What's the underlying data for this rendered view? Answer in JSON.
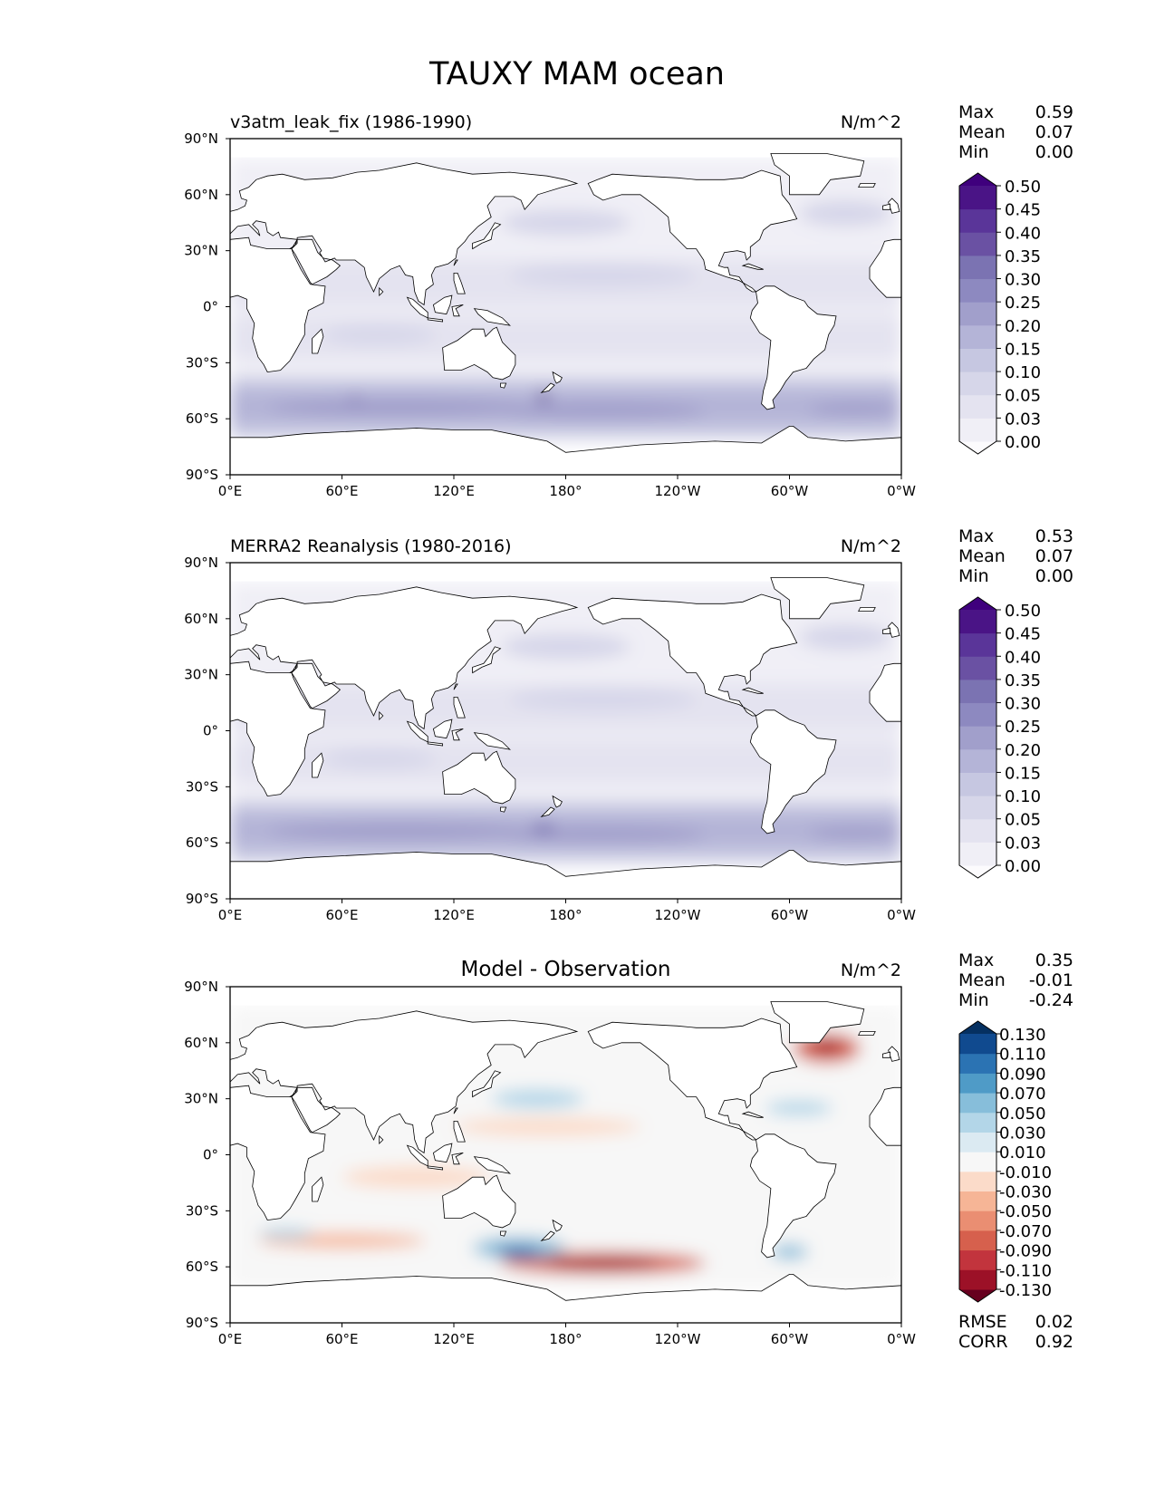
{
  "chart_data": {
    "type": "heatmap",
    "title": "TAUXY MAM ocean",
    "xlabel": "",
    "ylabel": "",
    "xlim": [
      0,
      360
    ],
    "ylim": [
      -90,
      90
    ],
    "x_ticks": [
      "0°E",
      "60°E",
      "120°E",
      "180°",
      "120°W",
      "60°W",
      "0°W"
    ],
    "y_ticks": [
      "90°N",
      "60°N",
      "30°N",
      "0°",
      "30°S",
      "60°S",
      "90°S"
    ],
    "panels": [
      {
        "title": "v3atm_leak_fix (1986-1990)",
        "units": "N/m^2",
        "stats": [
          {
            "label": "Max",
            "value": "0.59"
          },
          {
            "label": "Mean",
            "value": "0.07"
          },
          {
            "label": "Min",
            "value": "0.00"
          }
        ],
        "colorbar": {
          "cmap": "Purples",
          "colors": [
            "#fcfbfd",
            "#f0eff6",
            "#e4e3f0",
            "#d6d6e9",
            "#c6c7e1",
            "#b4b4d7",
            "#a19fcb",
            "#8d89c0",
            "#7b73b2",
            "#6a51a3",
            "#5a3599",
            "#4a1486",
            "#3f007d"
          ],
          "levels": [
            "0.00",
            "0.03",
            "0.05",
            "0.10",
            "0.15",
            "0.20",
            "0.25",
            "0.30",
            "0.35",
            "0.40",
            "0.45",
            "0.50"
          ]
        }
      },
      {
        "title": "MERRA2 Reanalysis (1980-2016)",
        "units": "N/m^2",
        "stats": [
          {
            "label": "Max",
            "value": "0.53"
          },
          {
            "label": "Mean",
            "value": "0.07"
          },
          {
            "label": "Min",
            "value": "0.00"
          }
        ],
        "colorbar": {
          "cmap": "Purples",
          "colors": [
            "#fcfbfd",
            "#f0eff6",
            "#e4e3f0",
            "#d6d6e9",
            "#c6c7e1",
            "#b4b4d7",
            "#a19fcb",
            "#8d89c0",
            "#7b73b2",
            "#6a51a3",
            "#5a3599",
            "#4a1486",
            "#3f007d"
          ],
          "levels": [
            "0.00",
            "0.03",
            "0.05",
            "0.10",
            "0.15",
            "0.20",
            "0.25",
            "0.30",
            "0.35",
            "0.40",
            "0.45",
            "0.50"
          ]
        }
      },
      {
        "title": "Model - Observation",
        "units": "N/m^2",
        "stats": [
          {
            "label": "Max",
            "value": "0.35"
          },
          {
            "label": "Mean",
            "value": "-0.01"
          },
          {
            "label": "Min",
            "value": "-0.24"
          }
        ],
        "colorbar": {
          "cmap": "RdBu",
          "colors": [
            "#67001f",
            "#9c1127",
            "#c2343d",
            "#d6604d",
            "#ea8e72",
            "#f6b596",
            "#fbdbc9",
            "#f7f7f7",
            "#dbeaf2",
            "#b3d6e8",
            "#87beda",
            "#4f9bc7",
            "#2b73b3",
            "#104a8f",
            "#053061"
          ],
          "levels": [
            "-0.130",
            "-0.110",
            "-0.090",
            "-0.070",
            "-0.050",
            "-0.030",
            "-0.010",
            "0.010",
            "0.030",
            "0.050",
            "0.070",
            "0.090",
            "0.110",
            "0.130"
          ]
        },
        "metrics": [
          {
            "label": "RMSE",
            "value": "0.02"
          },
          {
            "label": "CORR",
            "value": "0.92"
          }
        ]
      }
    ]
  }
}
